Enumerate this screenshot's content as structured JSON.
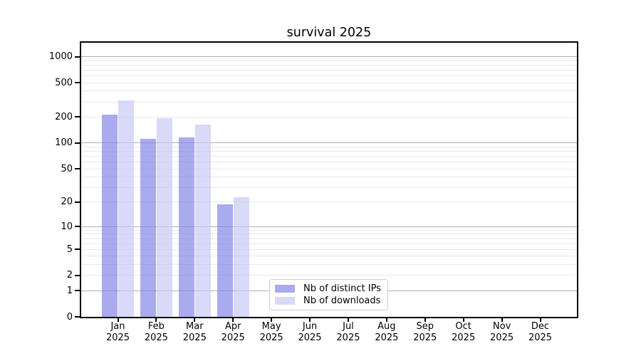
{
  "title": "survival 2025",
  "chart_data": {
    "type": "bar",
    "title": "survival 2025",
    "y_scale": "log1p",
    "ylim": [
      0,
      1448
    ],
    "y_ticks": [
      0,
      1,
      2,
      5,
      10,
      20,
      50,
      100,
      200,
      500,
      1000
    ],
    "grid_major": [
      1,
      10,
      100,
      1000
    ],
    "grid_minor": [
      2,
      3,
      4,
      5,
      6,
      7,
      8,
      9,
      20,
      30,
      40,
      50,
      60,
      70,
      80,
      90,
      200,
      300,
      400,
      500,
      600,
      700,
      800,
      900
    ],
    "grid": "on",
    "categories": [
      "Jan",
      "Feb",
      "Mar",
      "Apr",
      "May",
      "Jun",
      "Jul",
      "Aug",
      "Sep",
      "Oct",
      "Nov",
      "Dec"
    ],
    "year_label": "2025",
    "xlabel": "",
    "ylabel": "",
    "series": [
      {
        "name": "Nb of distinct IPs",
        "color": "rgba(134,134,232,0.7)",
        "values": [
          215,
          112,
          116,
          19,
          0,
          0,
          0,
          0,
          0,
          0,
          0,
          0
        ]
      },
      {
        "name": "Nb of downloads",
        "color": "rgba(201,201,246,0.7)",
        "values": [
          310,
          195,
          165,
          23,
          0,
          0,
          0,
          0,
          0,
          0,
          0,
          0
        ]
      }
    ],
    "legend_position": "bottom-center",
    "colors": {
      "grid_major": "#b0b0b0",
      "grid_minor": "#e8e8e8",
      "axis": "#000000",
      "background": "#ffffff"
    }
  }
}
